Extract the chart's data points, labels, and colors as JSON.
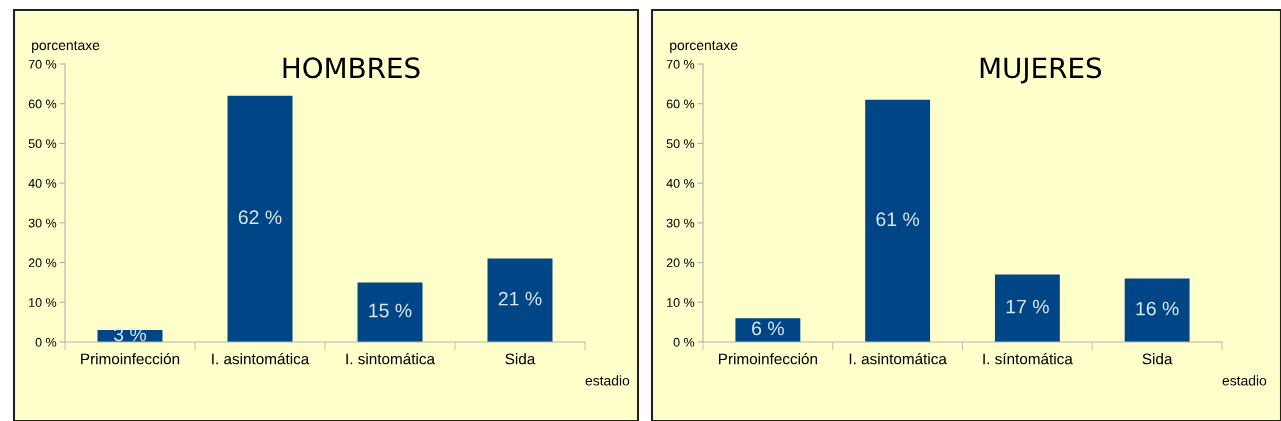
{
  "chart_data": [
    {
      "type": "bar",
      "title": "HOMBRES",
      "ylabel": "porcentaxe",
      "xlabel": "estadio",
      "categories": [
        "Primoinfección",
        "I. asintomática",
        "I. sintomática",
        "Sida"
      ],
      "series": [
        {
          "color": "#004586",
          "values": [
            3,
            62,
            15,
            21
          ]
        }
      ],
      "ylim": [
        0,
        70
      ],
      "yticks": [
        {
          "value": 0,
          "label": "0 %"
        },
        {
          "value": 10,
          "label": "10 %"
        },
        {
          "value": 20,
          "label": "20 %"
        },
        {
          "value": 30,
          "label": "30 %"
        },
        {
          "value": 40,
          "label": "40 %"
        },
        {
          "value": 50,
          "label": "50 %"
        },
        {
          "value": 60,
          "label": "60 %"
        },
        {
          "value": 70,
          "label": "70 %"
        }
      ],
      "value_labels": [
        "3 %",
        "62 %",
        "15 %",
        "21 %"
      ],
      "grid": false,
      "legend": false
    },
    {
      "type": "bar",
      "title": "MUJERES",
      "ylabel": "porcentaxe",
      "xlabel": "estadio",
      "categories": [
        "Primoinfección",
        "I. asintomática",
        "I. síntomática",
        "Sida"
      ],
      "series": [
        {
          "color": "#004586",
          "values": [
            6,
            61,
            17,
            16
          ]
        }
      ],
      "ylim": [
        0,
        70
      ],
      "yticks": [
        {
          "value": 0,
          "label": "0 %"
        },
        {
          "value": 10,
          "label": "10 %"
        },
        {
          "value": 20,
          "label": "20 %"
        },
        {
          "value": 30,
          "label": "30 %"
        },
        {
          "value": 40,
          "label": "40 %"
        },
        {
          "value": 50,
          "label": "50 %"
        },
        {
          "value": 60,
          "label": "60 %"
        },
        {
          "value": 70,
          "label": "70 %"
        }
      ],
      "value_labels": [
        "6 %",
        "61 %",
        "17 %",
        "16 %"
      ],
      "grid": false,
      "legend": false
    }
  ]
}
